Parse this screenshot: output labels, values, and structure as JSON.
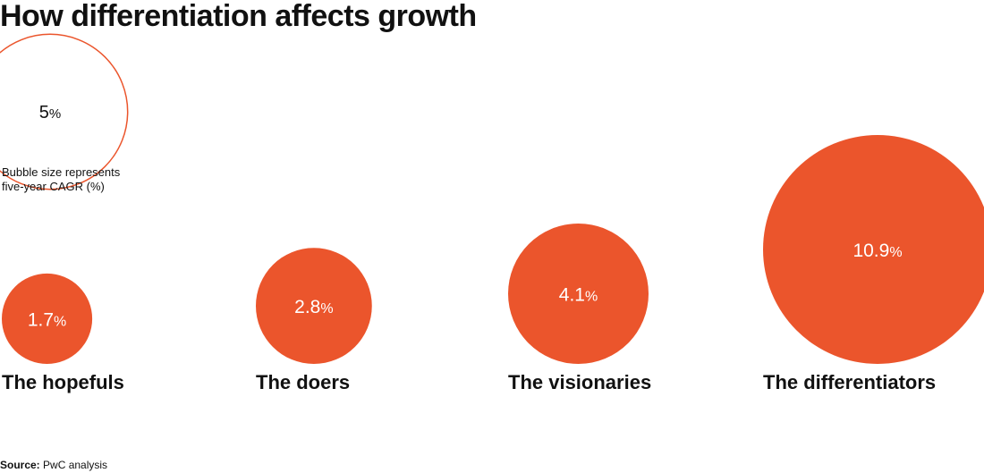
{
  "title": "How differentiation affects growth",
  "legend": {
    "reference_value": "5",
    "reference_unit": "%",
    "note_line1": "Bubble size represents",
    "note_line2": "five-year CAGR (%)"
  },
  "source": {
    "label": "Source:",
    "text": "PwC analysis"
  },
  "colors": {
    "bubble": "#eb552c",
    "outline": "#eb552c",
    "text": "#111111",
    "label_on_bubble": "#ffffff"
  },
  "chart_data": {
    "type": "bubble",
    "title": "How differentiation affects growth",
    "measure": "five-year CAGR (%)",
    "reference_bubble": {
      "value": 5,
      "label": "5%"
    },
    "categories": [
      "The hopefuls",
      "The doers",
      "The visionaries",
      "The differentiators"
    ],
    "values": [
      1.7,
      2.8,
      4.1,
      10.9
    ],
    "value_labels": [
      "1.7",
      "2.8",
      "4.1",
      "10.9"
    ],
    "unit": "%"
  }
}
